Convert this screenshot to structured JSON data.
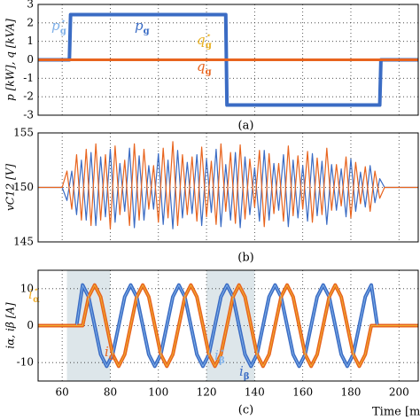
{
  "chart_data": [
    {
      "type": "line",
      "ylabel": "p [kW], q [kVA]",
      "caption": "(a)",
      "x": [
        50,
        63,
        63.5,
        128,
        128.5,
        192,
        192.5,
        208
      ],
      "series": [
        {
          "name": "p",
          "sub": "g",
          "sup": "⋆",
          "color": "#7fb0e8",
          "width": 1.5,
          "values": [
            0,
            0,
            2.5,
            2.5,
            -2.5,
            -2.5,
            0,
            0
          ]
        },
        {
          "name": "p",
          "sub": "g",
          "color": "#3b6cc4",
          "width": 4,
          "values": [
            0,
            0,
            2.45,
            2.45,
            -2.45,
            -2.45,
            0,
            0
          ]
        },
        {
          "name": "q",
          "sub": "g",
          "sup": "⋆",
          "color": "#e8b020",
          "width": 1.5,
          "values": [
            0,
            0,
            0,
            0,
            0,
            0,
            0,
            0
          ]
        },
        {
          "name": "q",
          "sub": "g",
          "color": "#e8641e",
          "width": 3,
          "values": [
            0,
            0,
            0,
            0,
            0,
            0,
            0,
            0
          ]
        }
      ],
      "xlim": [
        50,
        208
      ],
      "xticks": [
        60,
        80,
        100,
        120,
        140,
        160,
        180,
        200
      ],
      "xtick_labels": false,
      "ylim": [
        -3,
        3
      ],
      "yticks": [
        -3,
        -2,
        -1,
        0,
        1,
        2,
        3
      ],
      "grid": true
    },
    {
      "type": "line",
      "ylabel": "vC12 [V]",
      "caption": "(b)",
      "x": [
        50,
        60,
        62,
        64,
        66,
        68,
        70,
        72,
        74,
        76,
        78,
        80,
        82,
        84,
        86,
        88,
        90,
        92,
        94,
        96,
        98,
        100,
        102,
        104,
        106,
        108,
        110,
        112,
        114,
        116,
        118,
        120,
        122,
        124,
        126,
        128,
        130,
        132,
        134,
        136,
        138,
        140,
        142,
        144,
        146,
        148,
        150,
        152,
        154,
        156,
        158,
        160,
        162,
        164,
        166,
        168,
        170,
        172,
        174,
        176,
        178,
        180,
        182,
        184,
        186,
        188,
        190,
        192,
        194,
        208
      ],
      "series": [
        {
          "color": "#3b6cc4",
          "width": 1.2,
          "values": [
            150,
            150,
            148.8,
            151.5,
            147.5,
            152.5,
            147,
            153.2,
            146.5,
            152.8,
            147.3,
            153.5,
            146.8,
            152.2,
            147.8,
            153.6,
            146.3,
            152.9,
            147,
            152,
            148,
            153.1,
            146.6,
            152.5,
            146.2,
            153.4,
            147.2,
            152.3,
            147.6,
            153,
            146.5,
            152.6,
            147.7,
            153.5,
            146.4,
            152.1,
            147,
            153.2,
            146.3,
            152.8,
            147.5,
            151.8,
            146.9,
            153.4,
            147,
            152.2,
            147.9,
            153,
            146.4,
            152.5,
            147.2,
            152,
            146.9,
            153.1,
            147.4,
            152.4,
            146.6,
            152.1,
            147.9,
            151.7,
            147.3,
            152.6,
            147.8,
            151.4,
            148.2,
            152,
            148.6,
            150.8,
            150,
            150
          ]
        },
        {
          "color": "#e8641e",
          "width": 1.2,
          "values": [
            150,
            150,
            151.5,
            148,
            153,
            147,
            153.5,
            146.5,
            154,
            147,
            153,
            146.2,
            153.8,
            147.5,
            152.5,
            146.5,
            154,
            147,
            153.5,
            148,
            152,
            146.8,
            153.6,
            147.2,
            154.2,
            146.5,
            153,
            147.5,
            152.8,
            146.9,
            153.7,
            147.3,
            152.4,
            146.6,
            154,
            147.8,
            153.2,
            146.7,
            153.9,
            147.1,
            152.6,
            148.2,
            153.4,
            146.4,
            153.1,
            147.6,
            152.2,
            146.9,
            153.8,
            147.4,
            152.9,
            148,
            153.3,
            146.8,
            152.7,
            147.5,
            153.6,
            147.9,
            152.1,
            148.3,
            152.8,
            147.2,
            152.3,
            148.5,
            151.9,
            147.8,
            151.5,
            149,
            150,
            150
          ]
        }
      ],
      "xlim": [
        50,
        208
      ],
      "xticks": [
        60,
        80,
        100,
        120,
        140,
        160,
        180,
        200
      ],
      "xtick_labels": false,
      "ylim": [
        145,
        155
      ],
      "yticks": [
        145,
        150,
        155
      ],
      "grid": true
    },
    {
      "type": "line",
      "ylabel": "iα, iβ [A]",
      "caption": "(c)",
      "xlabel": "Time [ms]",
      "shaded": [
        [
          62,
          80
        ],
        [
          120,
          140
        ]
      ],
      "x": [
        50,
        66,
        68.5,
        71,
        73.5,
        76,
        78.5,
        81,
        83.5,
        86,
        88.5,
        91,
        93.5,
        96,
        98.5,
        101,
        103.5,
        106,
        108.5,
        111,
        113.5,
        116,
        118.5,
        121,
        123.5,
        126,
        128.5,
        131,
        133.5,
        136,
        138.5,
        141,
        143.5,
        146,
        148.5,
        151,
        153.5,
        156,
        158.5,
        161,
        163.5,
        166,
        168.5,
        171,
        173.5,
        176,
        178.5,
        181,
        183.5,
        186,
        188.5,
        191,
        208
      ],
      "series": [
        {
          "name": "i",
          "sub": "β",
          "color": "#3b6cc4",
          "width": 4,
          "values": [
            0,
            0,
            11,
            7.8,
            0,
            -7.8,
            -11,
            -7.8,
            0,
            7.8,
            11,
            7.8,
            0,
            -7.8,
            -11,
            -7.8,
            0,
            7.8,
            11,
            7.8,
            0,
            -7.8,
            -11,
            -7.8,
            0,
            7.8,
            11,
            7.8,
            0,
            -7.8,
            -11,
            -7.8,
            0,
            7.8,
            11,
            7.8,
            0,
            -7.8,
            -11,
            -7.8,
            0,
            7.8,
            11,
            7.8,
            0,
            -7.8,
            -11,
            -7.8,
            0,
            7.8,
            11,
            0,
            0
          ]
        },
        {
          "name": "i",
          "sub": "α",
          "color": "#e8641e",
          "width": 4,
          "values": [
            0,
            0,
            0,
            7.8,
            11,
            7.8,
            0,
            -7.8,
            -11,
            -7.8,
            0,
            7.8,
            11,
            7.8,
            0,
            -7.8,
            -11,
            -7.8,
            0,
            7.8,
            11,
            7.8,
            0,
            -7.8,
            -11,
            -7.8,
            0,
            7.8,
            11,
            7.8,
            0,
            -7.8,
            -11,
            -7.8,
            0,
            7.8,
            11,
            7.8,
            0,
            -7.8,
            -11,
            -7.8,
            0,
            7.8,
            11,
            7.8,
            0,
            -7.8,
            -11,
            -7.8,
            0,
            0,
            0
          ]
        },
        {
          "name": "i",
          "sub": "β",
          "sup": "⋆",
          "color": "#7fb0e8",
          "width": 1,
          "values": [
            0,
            0,
            11,
            7.8,
            0,
            -7.8,
            -11,
            -7.8,
            0,
            7.8,
            11,
            7.8,
            0,
            -7.8,
            -11,
            -7.8,
            0,
            7.8,
            11,
            7.8,
            0,
            -7.8,
            -11,
            -7.8,
            0,
            7.8,
            11,
            7.8,
            0,
            -7.8,
            -11,
            -7.8,
            0,
            7.8,
            11,
            7.8,
            0,
            -7.8,
            -11,
            -7.8,
            0,
            7.8,
            11,
            7.8,
            0,
            -7.8,
            -11,
            -7.8,
            0,
            7.8,
            11,
            0,
            0
          ]
        },
        {
          "name": "i",
          "sub": "α",
          "sup": "⋆",
          "color": "#f0b030",
          "width": 1,
          "values": [
            0,
            0,
            0,
            7.8,
            11,
            7.8,
            0,
            -7.8,
            -11,
            -7.8,
            0,
            7.8,
            11,
            7.8,
            0,
            -7.8,
            -11,
            -7.8,
            0,
            7.8,
            11,
            7.8,
            0,
            -7.8,
            -11,
            -7.8,
            0,
            7.8,
            11,
            7.8,
            0,
            -7.8,
            -11,
            -7.8,
            0,
            7.8,
            11,
            7.8,
            0,
            -7.8,
            -11,
            -7.8,
            0,
            7.8,
            11,
            7.8,
            0,
            -7.8,
            -11,
            -7.8,
            0,
            0,
            0
          ]
        }
      ],
      "xlim": [
        50,
        208
      ],
      "xticks": [
        60,
        80,
        100,
        120,
        140,
        160,
        180,
        200
      ],
      "xtick_labels": true,
      "ylim": [
        -15,
        15
      ],
      "yticks": [
        -10,
        0,
        10
      ],
      "grid": true
    }
  ]
}
